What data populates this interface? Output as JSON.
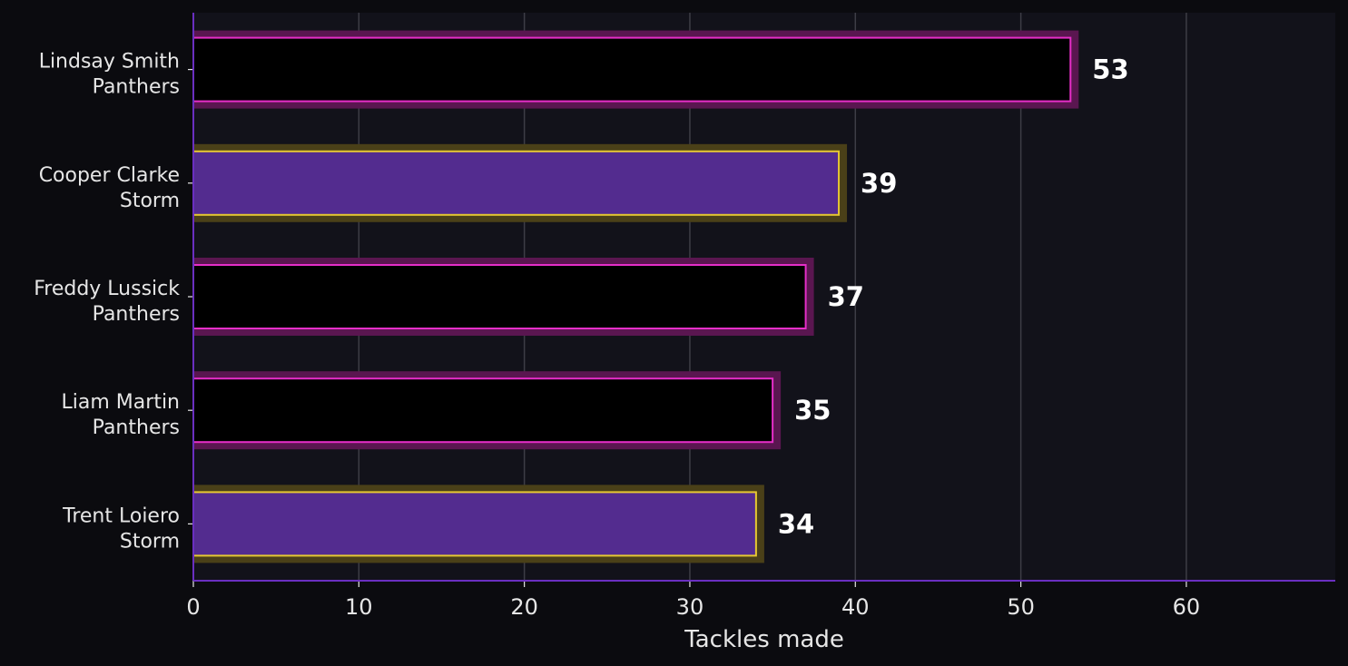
{
  "chart_data": {
    "type": "bar",
    "orientation": "horizontal",
    "categories": [
      {
        "player": "Lindsay Smith",
        "team": "Panthers"
      },
      {
        "player": "Cooper Clarke",
        "team": "Storm"
      },
      {
        "player": "Freddy Lussick",
        "team": "Panthers"
      },
      {
        "player": "Liam Martin",
        "team": "Panthers"
      },
      {
        "player": "Trent Loiero",
        "team": "Storm"
      }
    ],
    "values": [
      53,
      39,
      37,
      35,
      34
    ],
    "value_labels": [
      "53",
      "39",
      "37",
      "35",
      "34"
    ],
    "title": "",
    "xlabel": "Tackles made",
    "ylabel": "",
    "xlim": [
      0,
      69
    ],
    "xticks": [
      0,
      10,
      20,
      30,
      40,
      50,
      60
    ],
    "xtick_labels": [
      "0",
      "10",
      "20",
      "30",
      "40",
      "50",
      "60"
    ],
    "grid": "vertical",
    "team_styles": {
      "Panthers": {
        "fill": "#000000",
        "edge": "#e62ec8",
        "glow": "#5a1650"
      },
      "Storm": {
        "fill": "#532c8f",
        "edge": "#e6c832",
        "glow": "#4a4018"
      }
    },
    "colors": {
      "background": "#0b0b0f",
      "plot_background": "#12121a",
      "grid": "#3d3d46",
      "axis": "#6a2fc0",
      "text": "#e6e6e6"
    }
  }
}
